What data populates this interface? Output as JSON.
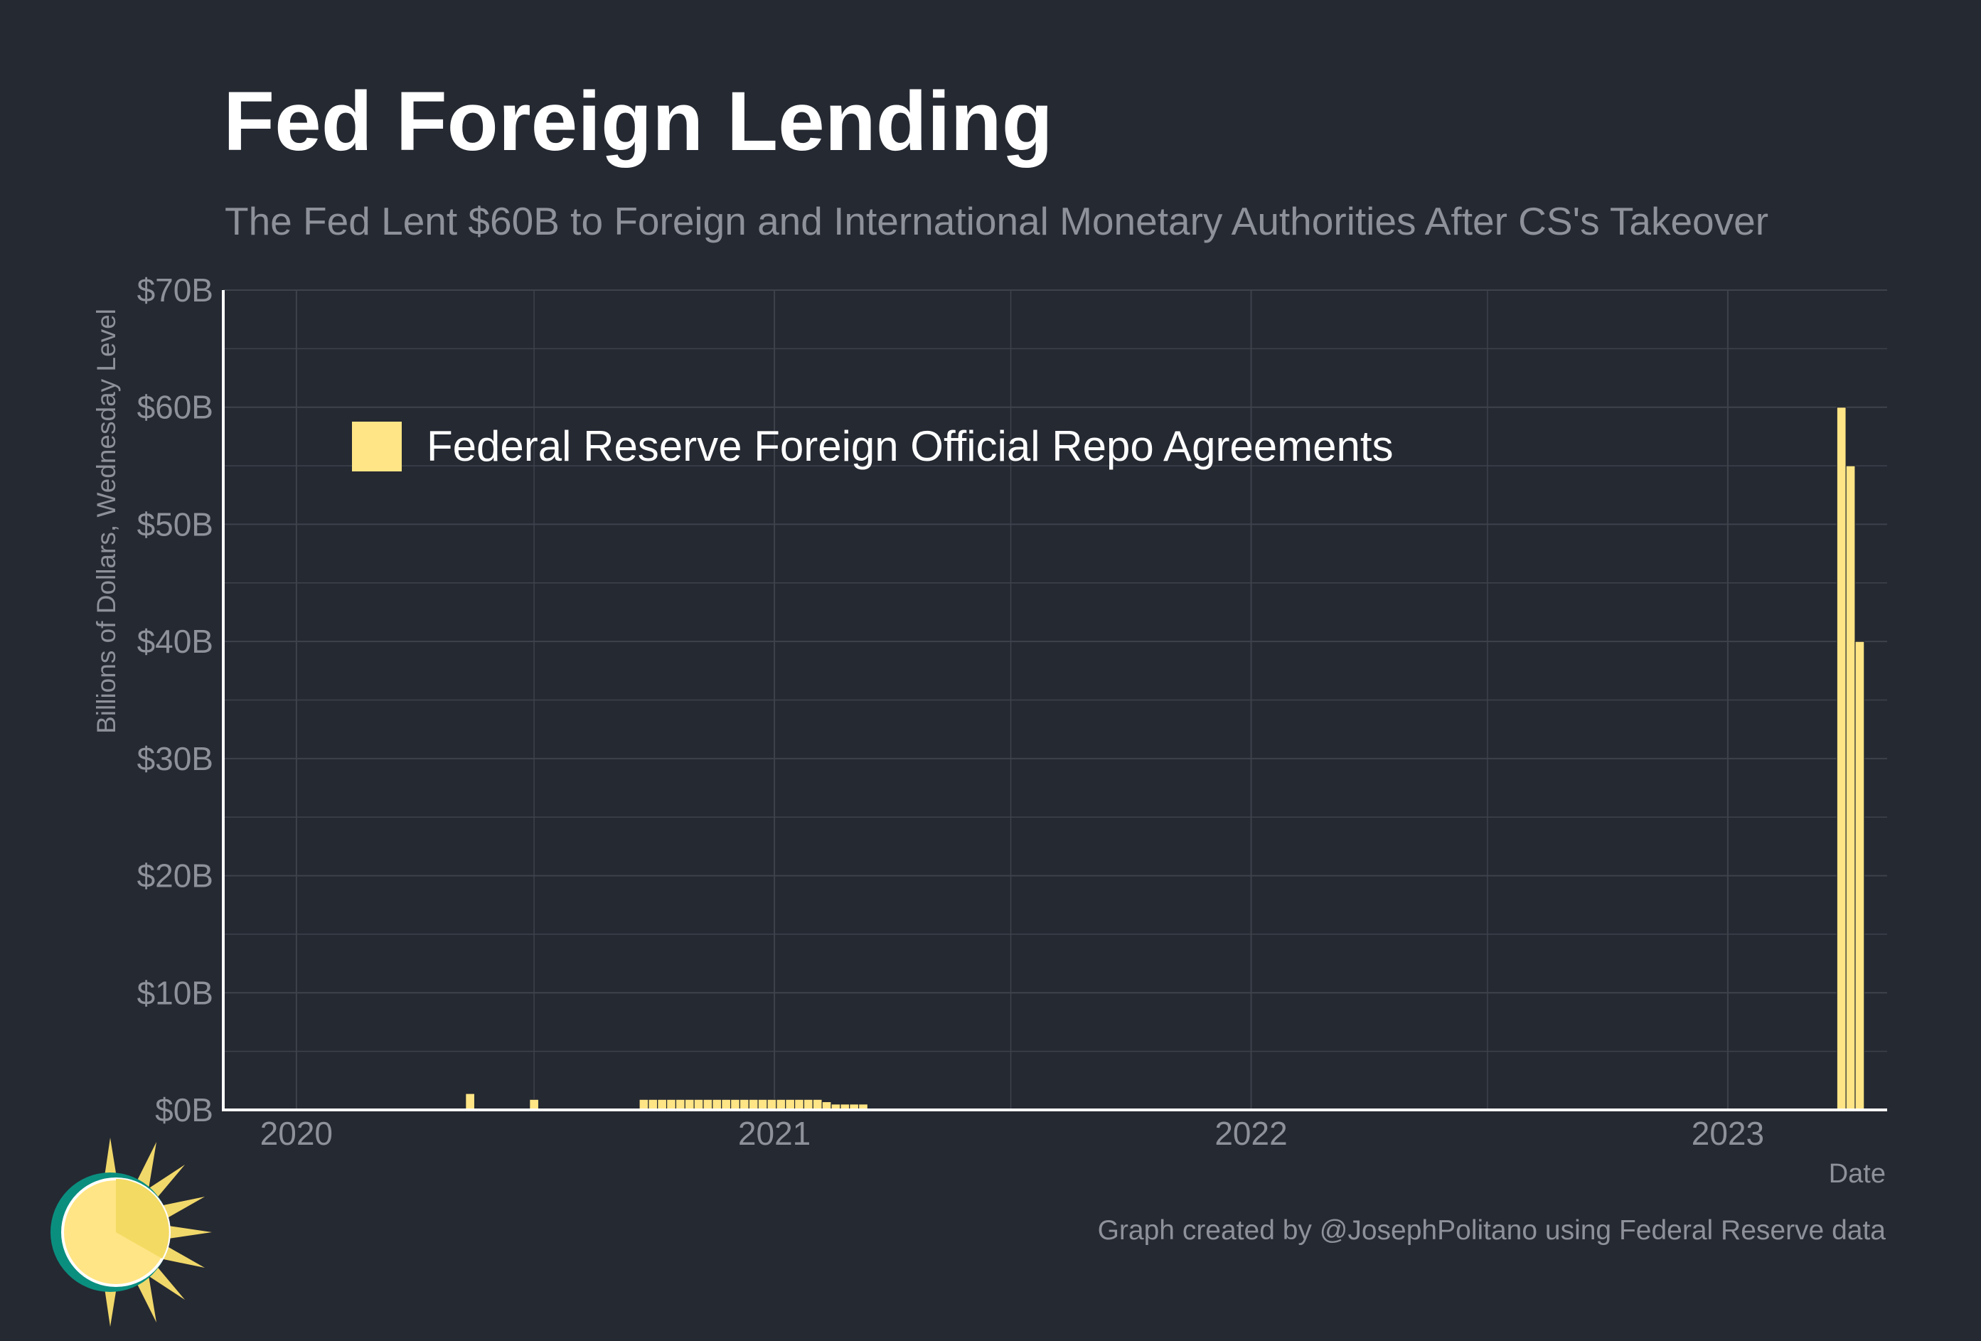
{
  "header": {
    "title": "Fed Foreign Lending",
    "subtitle": "The Fed Lent $60B to Foreign and International Monetary Authorities After CS's Takeover"
  },
  "footer": {
    "credit": "Graph created by @JosephPolitano using Federal Reserve data"
  },
  "colors": {
    "background": "#252932",
    "bar": "#ffe585",
    "grid": "#3e424b",
    "axis": "#ffffff",
    "muted_text": "#8e9199",
    "logo_ring": "#0a8f7f"
  },
  "logo": {
    "icon": "sun-icon"
  },
  "chart_data": {
    "type": "bar",
    "title": "Fed Foreign Lending",
    "subtitle": "The Fed Lent $60B to Foreign and International Monetary Authorities After CS's Takeover",
    "xlabel": "Date",
    "ylabel": "Billions of Dollars, Wednesday Level",
    "x_ticks": [
      "2020",
      "2021",
      "2022",
      "2023"
    ],
    "y_ticks": [
      "$0B",
      "$10B",
      "$20B",
      "$30B",
      "$40B",
      "$50B",
      "$60B",
      "$70B"
    ],
    "ylim": [
      0,
      70
    ],
    "xlim": [
      "2019-11-06",
      "2023-05-03"
    ],
    "grid": true,
    "legend_position": "top-left",
    "series": [
      {
        "name": "Federal Reserve Foreign Official Repo Agreements",
        "color": "#ffe585",
        "points": [
          {
            "date": "2020-05-13",
            "value": 1.4
          },
          {
            "date": "2020-07-01",
            "value": 0.9
          },
          {
            "date": "2020-09-23",
            "value": 0.9
          },
          {
            "date": "2020-09-30",
            "value": 0.9
          },
          {
            "date": "2020-10-07",
            "value": 0.9
          },
          {
            "date": "2020-10-14",
            "value": 0.9
          },
          {
            "date": "2020-10-21",
            "value": 0.9
          },
          {
            "date": "2020-10-28",
            "value": 0.9
          },
          {
            "date": "2020-11-04",
            "value": 0.9
          },
          {
            "date": "2020-11-11",
            "value": 0.9
          },
          {
            "date": "2020-11-18",
            "value": 0.9
          },
          {
            "date": "2020-11-25",
            "value": 0.9
          },
          {
            "date": "2020-12-02",
            "value": 0.9
          },
          {
            "date": "2020-12-09",
            "value": 0.9
          },
          {
            "date": "2020-12-16",
            "value": 0.9
          },
          {
            "date": "2020-12-23",
            "value": 0.9
          },
          {
            "date": "2020-12-30",
            "value": 0.9
          },
          {
            "date": "2021-01-06",
            "value": 0.9
          },
          {
            "date": "2021-01-13",
            "value": 0.9
          },
          {
            "date": "2021-01-20",
            "value": 0.9
          },
          {
            "date": "2021-01-27",
            "value": 0.9
          },
          {
            "date": "2021-02-03",
            "value": 0.9
          },
          {
            "date": "2021-02-10",
            "value": 0.7
          },
          {
            "date": "2021-02-17",
            "value": 0.5
          },
          {
            "date": "2021-02-24",
            "value": 0.5
          },
          {
            "date": "2021-03-03",
            "value": 0.5
          },
          {
            "date": "2021-03-10",
            "value": 0.5
          },
          {
            "date": "2023-03-29",
            "value": 60
          },
          {
            "date": "2023-04-05",
            "value": 55
          },
          {
            "date": "2023-04-12",
            "value": 40
          }
        ]
      }
    ]
  }
}
